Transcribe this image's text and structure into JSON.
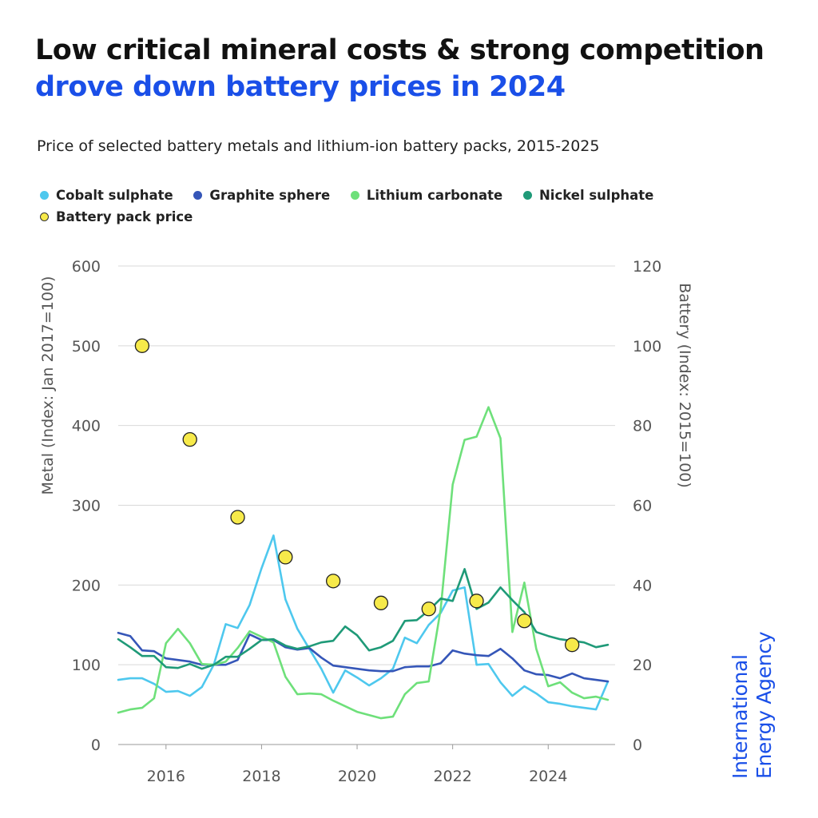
{
  "title": {
    "line1": "Low critical mineral costs & strong competition",
    "line2": "drove down battery prices in 2024"
  },
  "subtitle": "Price of selected battery metals and lithium-ion battery packs, 2015-2025",
  "logo": {
    "line1": "International",
    "line2": "Energy Agency"
  },
  "colors": {
    "cobalt": "#4ec8ee",
    "graphite": "#3556b8",
    "lithium": "#6ee07a",
    "nickel": "#1f9a78",
    "battery": "#f7ea4a",
    "grid": "#d9d9d9",
    "axis_text": "#555555"
  },
  "chart_data": {
    "type": "line",
    "title": "Price of selected battery metals and lithium-ion battery packs, 2015-2025",
    "xlabel": "",
    "ylabel": "Metal (Index: Jan 2017=100)",
    "ylabel_right": "Battery (Index: 2015=100)",
    "xlim": [
      2015.0,
      2025.4
    ],
    "ylim": [
      0,
      600
    ],
    "ylim_right": [
      0,
      120
    ],
    "x_ticks": [
      "2016",
      "2018",
      "2020",
      "2022",
      "2024"
    ],
    "y_ticks": [
      "0",
      "100",
      "200",
      "300",
      "400",
      "500",
      "600"
    ],
    "y_ticks_right": [
      "0",
      "20",
      "40",
      "60",
      "80",
      "100",
      "120"
    ],
    "grid": true,
    "legend_position": "top-left",
    "series": [
      {
        "name": "Cobalt sulphate",
        "axis": "left",
        "color_key": "cobalt",
        "x": [
          2015.0,
          2015.25,
          2015.5,
          2015.75,
          2016.0,
          2016.25,
          2016.5,
          2016.75,
          2017.0,
          2017.25,
          2017.5,
          2017.75,
          2018.0,
          2018.25,
          2018.5,
          2018.75,
          2019.0,
          2019.25,
          2019.5,
          2019.75,
          2020.0,
          2020.25,
          2020.5,
          2020.75,
          2021.0,
          2021.25,
          2021.5,
          2021.75,
          2022.0,
          2022.25,
          2022.5,
          2022.75,
          2023.0,
          2023.25,
          2023.5,
          2023.75,
          2024.0,
          2024.25,
          2024.5,
          2024.75,
          2025.0,
          2025.25
        ],
        "y": [
          81,
          83,
          83,
          76,
          66,
          67,
          61,
          72,
          100,
          151,
          146,
          175,
          221,
          262,
          182,
          145,
          120,
          95,
          65,
          93,
          84,
          74,
          83,
          95,
          134,
          127,
          150,
          165,
          193,
          197,
          100,
          101,
          78,
          61,
          73,
          64,
          53,
          51,
          48,
          46,
          44,
          79
        ]
      },
      {
        "name": "Graphite sphere",
        "axis": "left",
        "color_key": "graphite",
        "x": [
          2015.0,
          2015.25,
          2015.5,
          2015.75,
          2016.0,
          2016.25,
          2016.5,
          2016.75,
          2017.0,
          2017.25,
          2017.5,
          2017.75,
          2018.0,
          2018.25,
          2018.5,
          2018.75,
          2019.0,
          2019.25,
          2019.5,
          2019.75,
          2020.0,
          2020.25,
          2020.5,
          2020.75,
          2021.0,
          2021.25,
          2021.5,
          2021.75,
          2022.0,
          2022.25,
          2022.5,
          2022.75,
          2023.0,
          2023.25,
          2023.5,
          2023.75,
          2024.0,
          2024.25,
          2024.5,
          2024.75,
          2025.0,
          2025.25
        ],
        "y": [
          140,
          136,
          118,
          117,
          108,
          106,
          104,
          100,
          100,
          100,
          106,
          138,
          131,
          131,
          122,
          119,
          121,
          109,
          99,
          97,
          95,
          93,
          92,
          92,
          97,
          98,
          98,
          102,
          118,
          114,
          112,
          111,
          120,
          108,
          93,
          88,
          87,
          83,
          89,
          83,
          81,
          79
        ]
      },
      {
        "name": "Lithium carbonate",
        "axis": "left",
        "color_key": "lithium",
        "x": [
          2015.0,
          2015.25,
          2015.5,
          2015.75,
          2016.0,
          2016.25,
          2016.5,
          2016.75,
          2017.0,
          2017.25,
          2017.5,
          2017.75,
          2018.0,
          2018.25,
          2018.5,
          2018.75,
          2019.0,
          2019.25,
          2019.5,
          2019.75,
          2020.0,
          2020.25,
          2020.5,
          2020.75,
          2021.0,
          2021.25,
          2021.5,
          2021.75,
          2022.0,
          2022.25,
          2022.5,
          2022.75,
          2023.0,
          2023.25,
          2023.5,
          2023.75,
          2024.0,
          2024.25,
          2024.5,
          2024.75,
          2025.0,
          2025.25
        ],
        "y": [
          40,
          44,
          46,
          58,
          127,
          145,
          127,
          101,
          100,
          104,
          121,
          142,
          135,
          128,
          85,
          63,
          64,
          63,
          55,
          48,
          41,
          37,
          33,
          35,
          63,
          77,
          79,
          170,
          326,
          382,
          386,
          423,
          384,
          141,
          203,
          120,
          73,
          78,
          65,
          58,
          60,
          56
        ]
      },
      {
        "name": "Nickel sulphate",
        "axis": "left",
        "color_key": "nickel",
        "x": [
          2015.0,
          2015.25,
          2015.5,
          2015.75,
          2016.0,
          2016.25,
          2016.5,
          2016.75,
          2017.0,
          2017.25,
          2017.5,
          2017.75,
          2018.0,
          2018.25,
          2018.5,
          2018.75,
          2019.0,
          2019.25,
          2019.5,
          2019.75,
          2020.0,
          2020.25,
          2020.5,
          2020.75,
          2021.0,
          2021.25,
          2021.5,
          2021.75,
          2022.0,
          2022.25,
          2022.5,
          2022.75,
          2023.0,
          2023.25,
          2023.5,
          2023.75,
          2024.0,
          2024.25,
          2024.5,
          2024.75,
          2025.0,
          2025.25
        ],
        "y": [
          132,
          122,
          111,
          111,
          97,
          96,
          101,
          95,
          100,
          110,
          110,
          120,
          131,
          132,
          124,
          120,
          123,
          128,
          130,
          148,
          137,
          118,
          122,
          130,
          155,
          156,
          168,
          183,
          180,
          220,
          170,
          178,
          197,
          181,
          166,
          141,
          136,
          132,
          130,
          128,
          122,
          125
        ]
      },
      {
        "name": "Battery pack price",
        "axis": "right",
        "color_key": "battery",
        "marker": "circle",
        "x": [
          2015.5,
          2016.5,
          2017.5,
          2018.5,
          2019.5,
          2020.5,
          2021.5,
          2022.5,
          2023.5,
          2024.5
        ],
        "y": [
          100,
          76.5,
          57,
          47,
          41,
          35.5,
          34,
          36,
          31,
          25
        ]
      }
    ]
  }
}
